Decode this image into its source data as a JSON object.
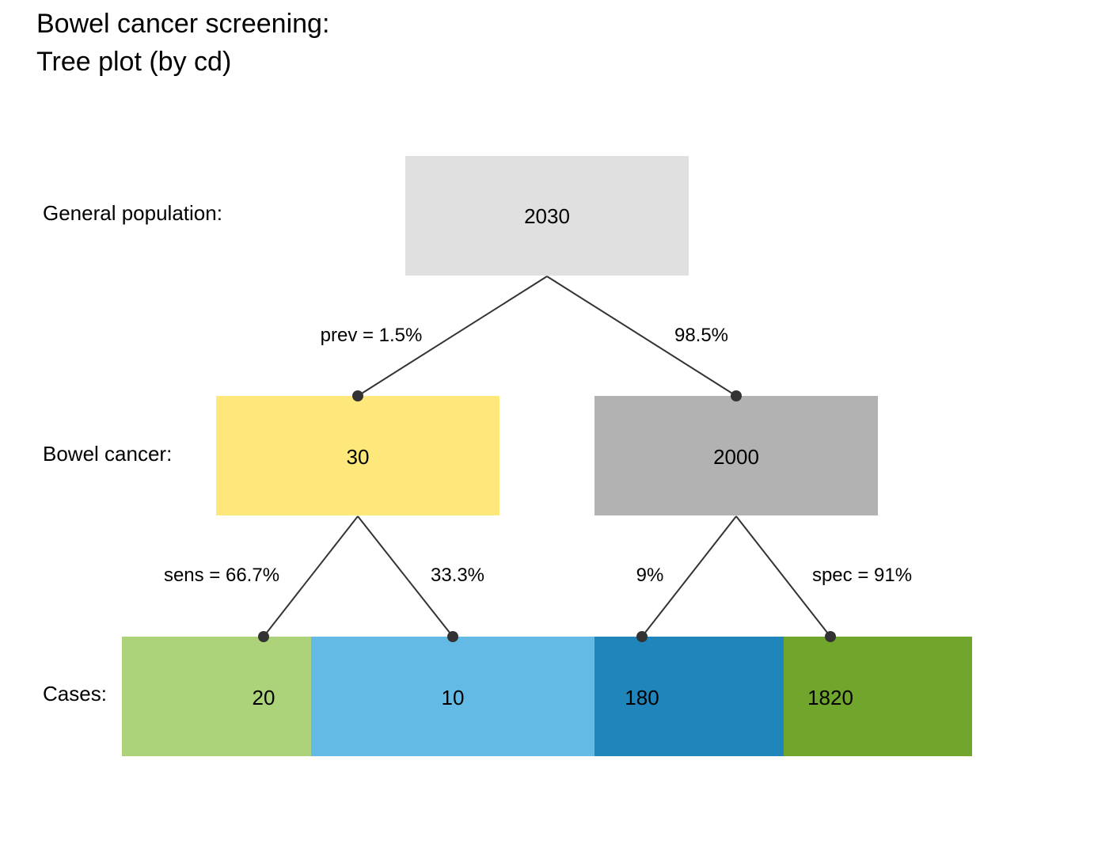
{
  "title_line1": "Bowel cancer screening:",
  "title_line2": "Tree plot (by cd)",
  "row_labels": {
    "population": "General population:",
    "condition": "Bowel cancer:",
    "cases": "Cases:"
  },
  "nodes": {
    "root": {
      "value": "2030",
      "color": "#e0e0e0"
    },
    "cond_true": {
      "value": "30",
      "color": "#fee77b"
    },
    "cond_false": {
      "value": "2000",
      "color": "#b2b2b2"
    },
    "hi": {
      "value": "20",
      "color": "#acd27a"
    },
    "mi": {
      "value": "10",
      "color": "#63bbe5"
    },
    "fa": {
      "value": "180",
      "color": "#1f85ba"
    },
    "cr": {
      "value": "1820",
      "color": "#71a62d"
    }
  },
  "edges": {
    "prev": "prev = 1.5%",
    "prev_complement": "98.5%",
    "sens": "sens = 66.7%",
    "miss_rate": "33.3%",
    "fa_rate": "9%",
    "spec": "spec = 91%"
  },
  "colors": {
    "line": "#333333",
    "dot": "#333333"
  }
}
